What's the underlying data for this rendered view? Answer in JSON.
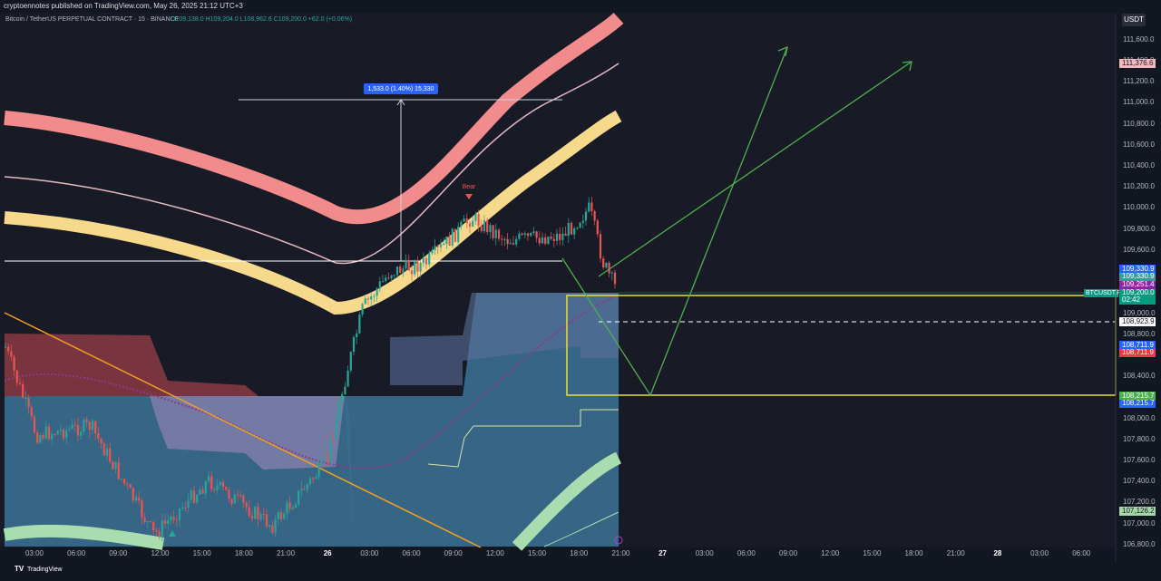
{
  "header": {
    "publisher": "cryptoennotes published on TradingView.com, May 26, 2025 21:12 UTC+3",
    "symbol": "Bitcoin / TetherUS PERPETUAL CONTRACT · 15 · BINANCE",
    "ohlc": "O109,138.0 H109,204.0 L108,962.6 C109,200.0 +62.0 (+0.06%)"
  },
  "currency": "USDT",
  "price_axis": [
    "111,600.0",
    "111,400.0",
    "111,200.0",
    "111,000.0",
    "110,800.0",
    "110,600.0",
    "110,400.0",
    "110,200.0",
    "110,000.0",
    "109,800.0",
    "109,600.0",
    "109,000.0",
    "108,800.0",
    "108,400.0",
    "108,000.0",
    "107,800.0",
    "107,600.0",
    "107,400.0",
    "107,200.0",
    "107,000.0",
    "106,800.0"
  ],
  "time_axis": [
    "03:00",
    "06:00",
    "09:00",
    "12:00",
    "15:00",
    "18:00",
    "21:00",
    "26",
    "03:00",
    "06:00",
    "09:00",
    "12:00",
    "15:00",
    "18:00",
    "21:00",
    "27",
    "03:00",
    "06:00",
    "09:00",
    "12:00",
    "15:00",
    "18:00",
    "21:00",
    "28",
    "03:00",
    "06:00"
  ],
  "price_tags": {
    "upper_band": "111,376.6",
    "blue_1": "109,330.9",
    "green_1": "109,330.9",
    "purple": "109,251.4",
    "symbol": "BTCUSDT.P",
    "last": "109,200.0",
    "countdown": "02:42",
    "dashed": "108,923.9",
    "blue_2": "108,711.9",
    "red": "108,711.9",
    "green_2": "108,215.7",
    "blue_3": "108,215.7",
    "lower_band": "107,126.2"
  },
  "measure": "1,533.0 (1.40%) 15,330",
  "signal": "Bear",
  "footer": "TradingView"
}
